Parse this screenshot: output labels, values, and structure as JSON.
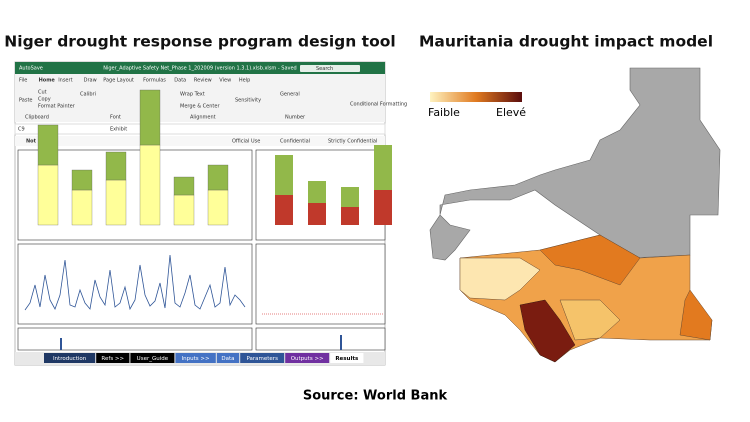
{
  "left": {
    "title": "Niger drought response program design tool",
    "window_title": "Niger_Adaptive Safety Net_Phase 1_202009 (version 1.3.1).xlsb.xlsm - Saved",
    "autosave": "AutoSave",
    "search": "Search",
    "ribbon_tabs": [
      "File",
      "Home",
      "Insert",
      "Draw",
      "Page Layout",
      "Formulas",
      "Data",
      "Review",
      "View",
      "Help"
    ],
    "ribbon_items": [
      "Paste",
      "Cut",
      "Copy",
      "Format Painter",
      "Clipboard",
      "Calibri",
      "Font",
      "Wrap Text",
      "Merge & Center",
      "Alignment",
      "Sensitivity",
      "General",
      "Number",
      "Conditional Formatting"
    ],
    "cell_ref": "C9",
    "formula": "Exhibit",
    "label_status": "Not set",
    "labels": [
      "Official Use",
      "Confidential",
      "Strictly Confidential"
    ],
    "sheet_tabs": [
      "Introduction",
      "Refs >>",
      "User_Guide",
      "Inputs >>",
      "Data",
      "Parameters",
      "Outputs >>",
      "Results"
    ]
  },
  "right": {
    "title": "Mauritania drought impact model",
    "legend_low": "Faible",
    "legend_high": "Elevé"
  },
  "source": "Source: World Bank"
}
